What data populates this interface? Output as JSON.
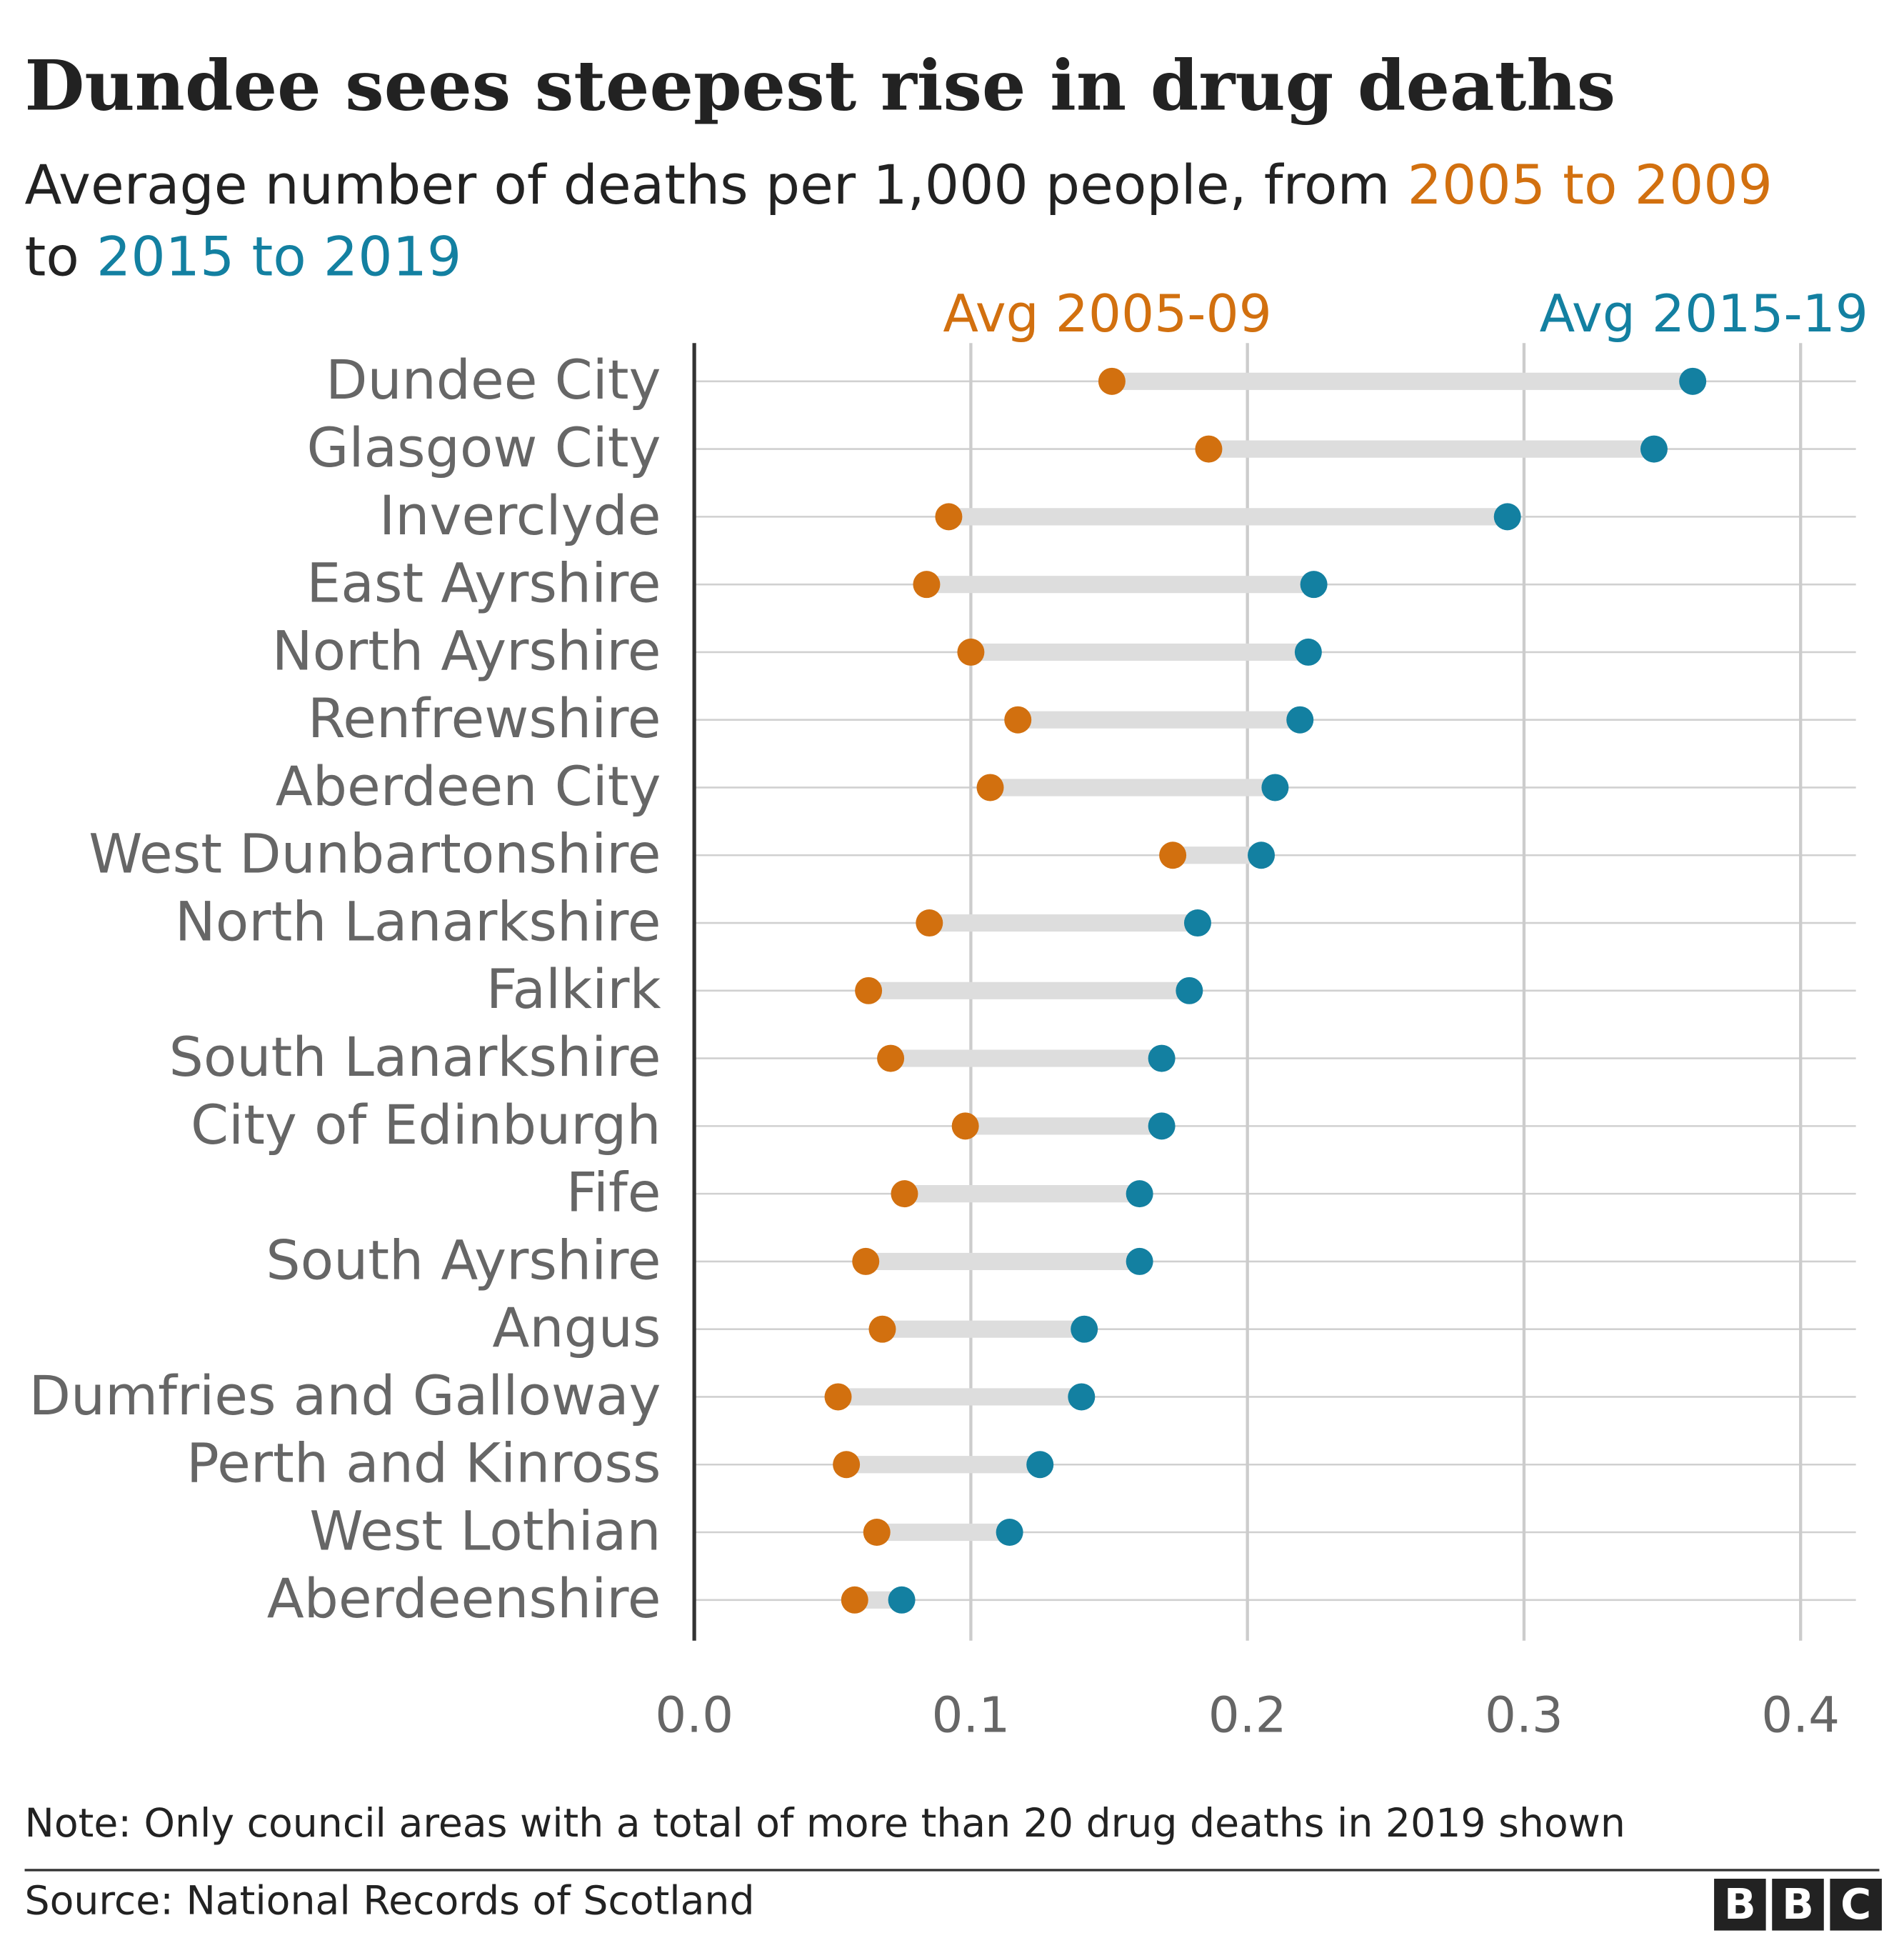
{
  "chart_data": {
    "type": "dumbbell",
    "title": "Dundee sees steepest rise in drug deaths",
    "subtitle": [
      {
        "text": "Average number of deaths per 1,000 people, from "
      },
      {
        "text": "2005 to 2009",
        "color": "#d2700f"
      },
      {
        "text": " to "
      },
      {
        "text": "2015 to 2019",
        "color": "#1380a1"
      }
    ],
    "categories": [
      "Dundee City",
      "Glasgow City",
      "Inverclyde",
      "East Ayrshire",
      "North Ayrshire",
      "Renfrewshire",
      "Aberdeen City",
      "West Dunbartonshire",
      "North Lanarkshire",
      "Falkirk",
      "South Lanarkshire",
      "City of Edinburgh",
      "Fife",
      "South Ayrshire",
      "Angus",
      "Dumfries and Galloway",
      "Perth and Kinross",
      "West Lothian",
      "Aberdeenshire"
    ],
    "series": [
      {
        "name": "Avg 2005-09",
        "color": "#d2700f",
        "values": [
          0.151,
          0.186,
          0.092,
          0.084,
          0.1,
          0.117,
          0.107,
          0.173,
          0.085,
          0.063,
          0.071,
          0.098,
          0.076,
          0.062,
          0.068,
          0.052,
          0.055,
          0.066,
          0.058
        ]
      },
      {
        "name": "Avg 2015-19",
        "color": "#1380a1",
        "values": [
          0.361,
          0.347,
          0.294,
          0.224,
          0.222,
          0.219,
          0.21,
          0.205,
          0.182,
          0.179,
          0.169,
          0.169,
          0.161,
          0.161,
          0.141,
          0.14,
          0.125,
          0.114,
          0.075
        ]
      }
    ],
    "xlim": [
      0,
      0.42
    ],
    "xticks": [
      {
        "value": 0,
        "label": "0.0"
      },
      0.1,
      0.2,
      0.3,
      0.4
    ],
    "grid": true,
    "note": "Note: Only council areas with a total of more than 20 drug deaths in 2019 shown",
    "source": "Source: National Records of Scotland",
    "logo": "BBC"
  }
}
